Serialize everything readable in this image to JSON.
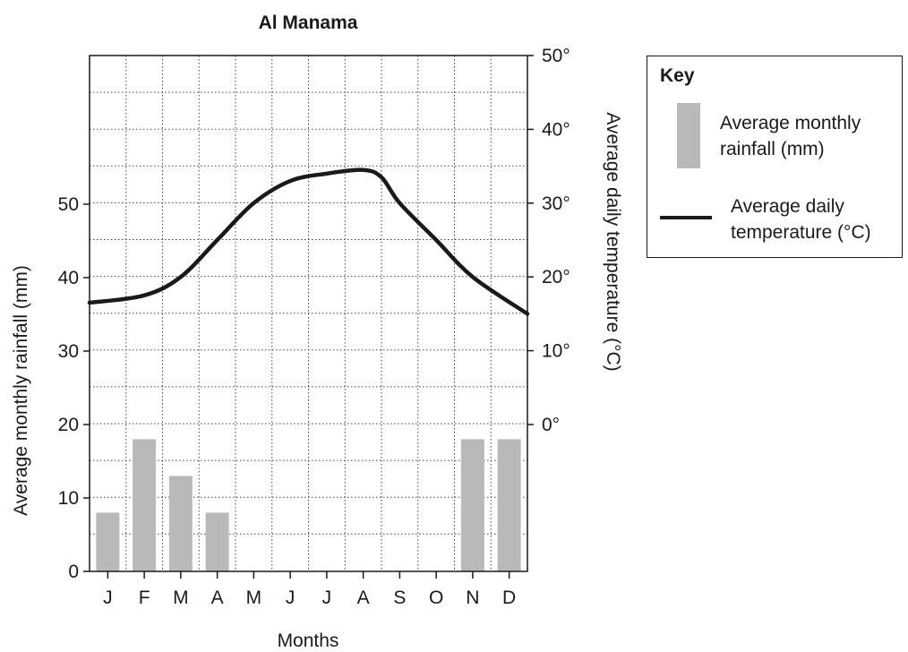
{
  "chart_data": {
    "type": "bar+line",
    "title": "Al Manama",
    "categories": [
      "J",
      "F",
      "M",
      "A",
      "M",
      "J",
      "J",
      "A",
      "S",
      "O",
      "N",
      "D"
    ],
    "xlabel": "Months",
    "ylabel_left": "Average monthly rainfall (mm)",
    "ylabel_right": "Average daily temperature (°C)",
    "left_axis": {
      "ylim": [
        0,
        50
      ],
      "ticks": [
        "0",
        "10",
        "20",
        "30",
        "40",
        "50"
      ]
    },
    "right_axis": {
      "ylim": [
        0,
        50
      ],
      "ticks": [
        "0°",
        "10°",
        "20°",
        "30°",
        "40°",
        "50°"
      ]
    },
    "grid": true,
    "series": [
      {
        "name": "Average monthly rainfall (mm)",
        "type": "bar",
        "axis": "left",
        "values": [
          8,
          18,
          13,
          8,
          0,
          0,
          0,
          0,
          0,
          0,
          18,
          18
        ],
        "color": "#b9b9bc"
      },
      {
        "name": "Average daily temperature (°C)",
        "type": "line",
        "axis": "right",
        "x": [
          0,
          1,
          2,
          3,
          4,
          5,
          6,
          7,
          7.5,
          8,
          9,
          10,
          11
        ],
        "values": [
          16.5,
          17.5,
          20,
          25,
          30,
          33,
          34,
          34.5,
          33.5,
          30,
          25,
          20,
          15
        ],
        "color": "#1a1a1a"
      }
    ],
    "legend": {
      "title": "Key",
      "placement": "right"
    }
  }
}
